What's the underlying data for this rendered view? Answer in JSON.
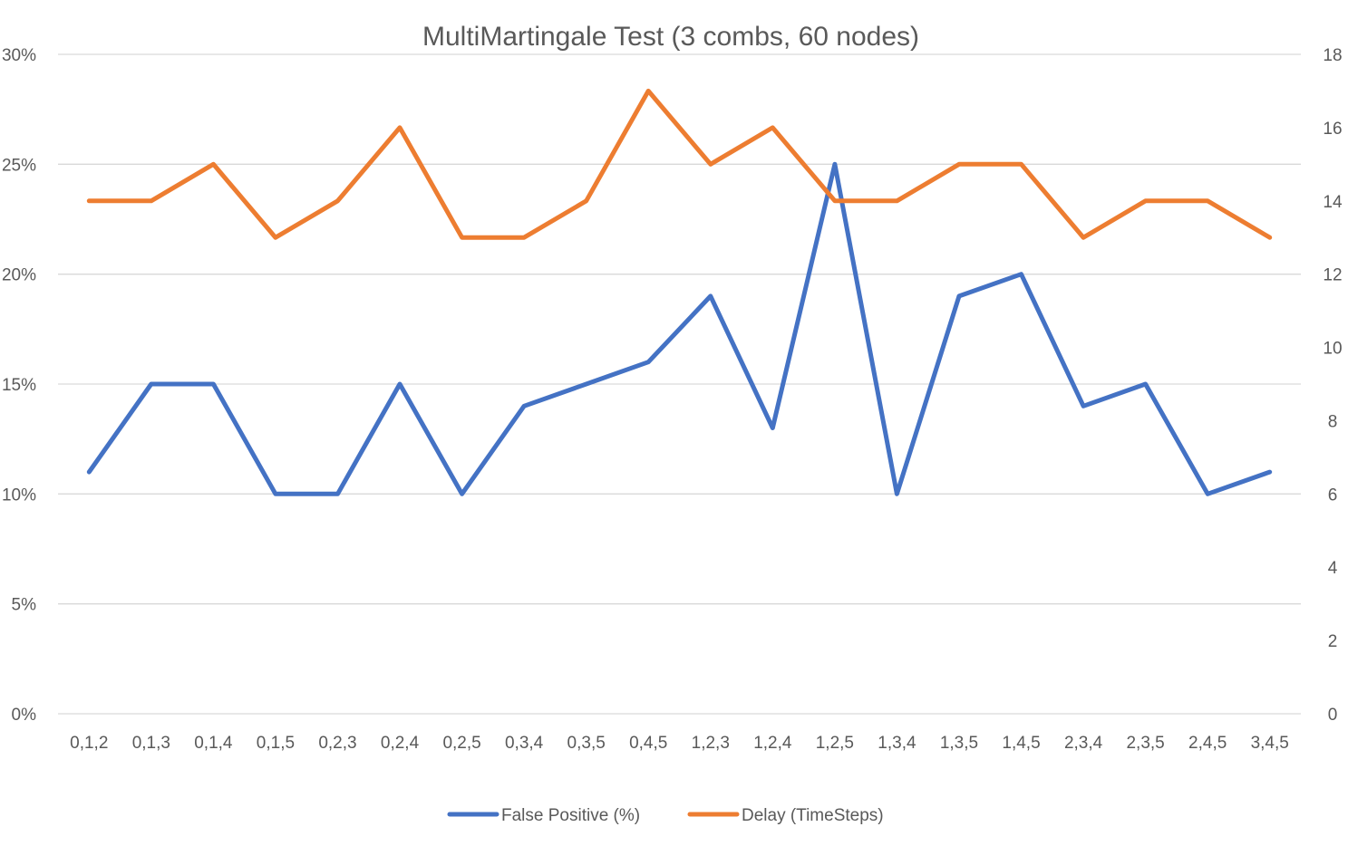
{
  "chart_data": {
    "type": "line",
    "title": "MultiMartingale Test (3 combs, 60 nodes)",
    "categories": [
      "0,1,2",
      "0,1,3",
      "0,1,4",
      "0,1,5",
      "0,2,3",
      "0,2,4",
      "0,2,5",
      "0,3,4",
      "0,3,5",
      "0,4,5",
      "1,2,3",
      "1,2,4",
      "1,2,5",
      "1,3,4",
      "1,3,5",
      "1,4,5",
      "2,3,4",
      "2,3,5",
      "2,4,5",
      "3,4,5"
    ],
    "y_left": {
      "min": 0,
      "max": 30,
      "step": 5,
      "tick_labels": [
        "0%",
        "5%",
        "10%",
        "15%",
        "20%",
        "25%",
        "30%"
      ]
    },
    "y_right": {
      "min": 0,
      "max": 18,
      "step": 2,
      "tick_labels": [
        "0",
        "2",
        "4",
        "6",
        "8",
        "10",
        "12",
        "14",
        "16",
        "18"
      ]
    },
    "series": [
      {
        "name": "False Positive (%)",
        "axis": "left",
        "color": "#4472c4",
        "values": [
          11,
          15,
          15,
          10,
          10,
          15,
          10,
          14,
          15,
          16,
          19,
          13,
          25,
          10,
          19,
          20,
          14,
          15,
          10,
          11
        ]
      },
      {
        "name": "Delay (TimeSteps)",
        "axis": "right",
        "color": "#ed7d31",
        "values": [
          14,
          14,
          15,
          13,
          14,
          16,
          13,
          13,
          14,
          17,
          15,
          16,
          14,
          14,
          15,
          15,
          13,
          14,
          14,
          13
        ]
      }
    ],
    "grid": true,
    "legend": "bottom"
  }
}
